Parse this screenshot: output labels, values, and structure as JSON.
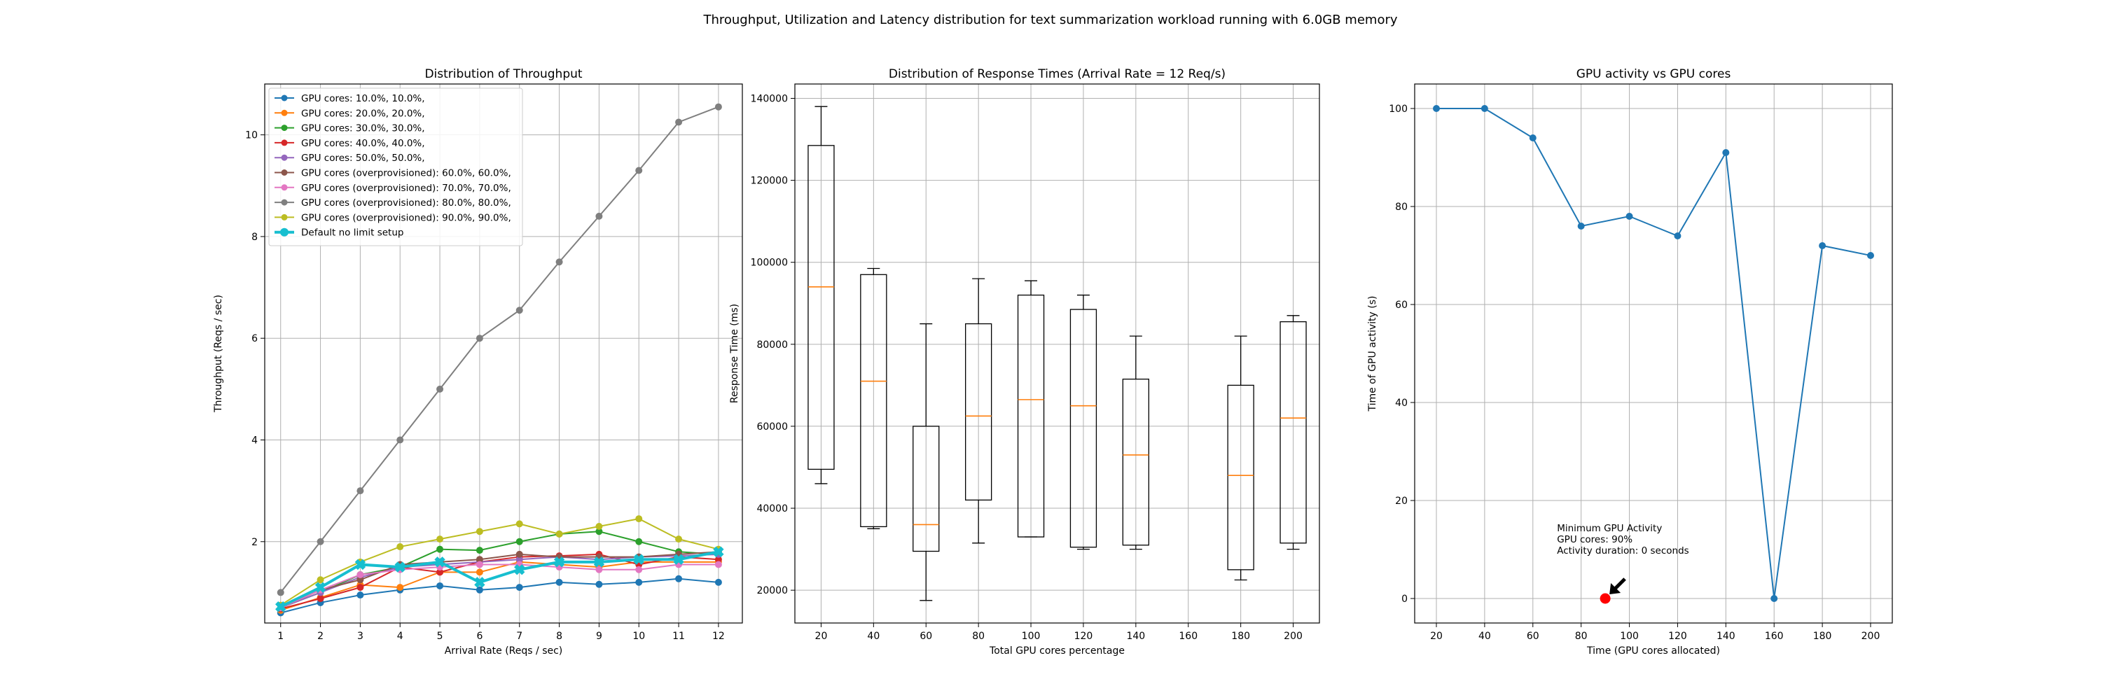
{
  "figure_title": "Throughput, Utilization and Latency distribution for text summarization workload running with 6.0GB memory",
  "chart_data": [
    {
      "type": "line",
      "title": "Distribution of Throughput",
      "xlabel": "Arrival Rate (Reqs / sec)",
      "ylabel": "Throughput (Reqs / sec)",
      "x": [
        1,
        2,
        3,
        4,
        5,
        6,
        7,
        8,
        9,
        10,
        11,
        12
      ],
      "xlim": [
        0.6,
        12.6
      ],
      "ylim": [
        0.4,
        11.0
      ],
      "yticks": [
        2,
        4,
        6,
        8,
        10
      ],
      "grid": true,
      "legend_position": "top-left",
      "series": [
        {
          "name": "GPU cores: 10.0%, 10.0%,",
          "color": "#1f77b4",
          "values": [
            0.6,
            0.8,
            0.95,
            1.05,
            1.13,
            1.05,
            1.1,
            1.2,
            1.16,
            1.2,
            1.27,
            1.2
          ]
        },
        {
          "name": "GPU cores: 20.0%, 20.0%,",
          "color": "#ff7f0e",
          "values": [
            0.65,
            0.9,
            1.15,
            1.1,
            1.4,
            1.4,
            1.6,
            1.55,
            1.5,
            1.6,
            1.6,
            1.6
          ]
        },
        {
          "name": "GPU cores: 30.0%, 30.0%,",
          "color": "#2ca02c",
          "values": [
            0.7,
            1.0,
            1.35,
            1.5,
            1.85,
            1.83,
            2.0,
            2.15,
            2.2,
            2.0,
            1.8,
            1.75
          ]
        },
        {
          "name": "GPU cores: 40.0%, 40.0%,",
          "color": "#d62728",
          "values": [
            0.68,
            0.88,
            1.1,
            1.5,
            1.4,
            1.6,
            1.7,
            1.72,
            1.75,
            1.55,
            1.7,
            1.65
          ]
        },
        {
          "name": "GPU cores: 50.0%, 50.0%,",
          "color": "#9467bd",
          "values": [
            0.7,
            1.0,
            1.3,
            1.5,
            1.55,
            1.6,
            1.65,
            1.7,
            1.65,
            1.7,
            1.72,
            1.75
          ]
        },
        {
          "name": "GPU cores (overprovisioned): 60.0%, 60.0%,",
          "color": "#8c564b",
          "values": [
            0.7,
            1.05,
            1.25,
            1.55,
            1.6,
            1.65,
            1.75,
            1.7,
            1.7,
            1.7,
            1.75,
            1.8
          ]
        },
        {
          "name": "GPU cores (overprovisioned): 70.0%, 70.0%,",
          "color": "#e377c2",
          "values": [
            0.7,
            1.05,
            1.35,
            1.45,
            1.5,
            1.55,
            1.55,
            1.5,
            1.45,
            1.45,
            1.55,
            1.55
          ]
        },
        {
          "name": "GPU cores (overprovisioned): 80.0%, 80.0%,",
          "color": "#7f7f7f",
          "values": [
            1.0,
            2.0,
            3.0,
            4.0,
            5.0,
            6.0,
            6.55,
            7.5,
            8.4,
            9.3,
            10.25,
            10.55
          ]
        },
        {
          "name": "GPU cores (overprovisioned): 90.0%, 90.0%,",
          "color": "#bcbd22",
          "values": [
            0.75,
            1.25,
            1.6,
            1.9,
            2.05,
            2.2,
            2.35,
            2.15,
            2.3,
            2.45,
            2.05,
            1.85
          ]
        },
        {
          "name": "Default no limit setup",
          "color": "#17becf",
          "thick": true,
          "values": [
            0.72,
            1.1,
            1.55,
            1.5,
            1.6,
            1.2,
            1.45,
            1.6,
            1.6,
            1.65,
            1.65,
            1.8
          ]
        }
      ]
    },
    {
      "type": "box",
      "title": "Distribution of Response Times (Arrival Rate = 12 Req/s)",
      "xlabel": "Total GPU cores percentage",
      "ylabel": "Response Time (ms)",
      "categories": [
        "20",
        "40",
        "60",
        "80",
        "100",
        "120",
        "140",
        "160",
        "180",
        "200"
      ],
      "ylim": [
        12000,
        143500
      ],
      "yticks": [
        20000,
        40000,
        60000,
        80000,
        100000,
        120000,
        140000
      ],
      "grid": true,
      "median_color": "#ff7f0e",
      "boxes": [
        {
          "whisker_low": 46000,
          "q1": 49500,
          "median": 94000,
          "q3": 128500,
          "whisker_high": 138000
        },
        {
          "whisker_low": 35000,
          "q1": 35500,
          "median": 71000,
          "q3": 97000,
          "whisker_high": 98500
        },
        {
          "whisker_low": 17500,
          "q1": 29500,
          "median": 36000,
          "q3": 60000,
          "whisker_high": 85000
        },
        {
          "whisker_low": 31500,
          "q1": 42000,
          "median": 62500,
          "q3": 85000,
          "whisker_high": 96000
        },
        {
          "whisker_low": 33000,
          "q1": 33000,
          "median": 66500,
          "q3": 92000,
          "whisker_high": 95500
        },
        {
          "whisker_low": 30000,
          "q1": 30500,
          "median": 65000,
          "q3": 88500,
          "whisker_high": 92000
        },
        {
          "whisker_low": 30000,
          "q1": 31000,
          "median": 53000,
          "q3": 71500,
          "whisker_high": 82000
        },
        null,
        {
          "whisker_low": 22500,
          "q1": 25000,
          "median": 48000,
          "q3": 70000,
          "whisker_high": 82000
        },
        {
          "whisker_low": 30000,
          "q1": 31500,
          "median": 62000,
          "q3": 85500,
          "whisker_high": 87000
        }
      ]
    },
    {
      "type": "line",
      "title": "GPU activity vs GPU cores",
      "xlabel": "Time (GPU cores allocated)",
      "ylabel": "Time of GPU activity (s)",
      "x": [
        20,
        40,
        60,
        80,
        100,
        120,
        140,
        160,
        180,
        200
      ],
      "xlim": [
        11,
        209
      ],
      "xticks": [
        20,
        40,
        60,
        80,
        100,
        120,
        140,
        160,
        180,
        200
      ],
      "ylim": [
        -5,
        105
      ],
      "yticks": [
        0,
        20,
        40,
        60,
        80,
        100
      ],
      "grid": true,
      "series": [
        {
          "color": "#1f77b4",
          "values": [
            100,
            100,
            94,
            76,
            78,
            74,
            91,
            0,
            72,
            70
          ]
        }
      ],
      "highlight_point": {
        "x": 90,
        "y": 0,
        "color": "#ff0000"
      },
      "annotation": {
        "lines": [
          "Minimum GPU Activity",
          "GPU cores: 90%",
          "Activity duration: 0 seconds"
        ],
        "text_x": 70,
        "text_y": 10,
        "arrow_to_x": 90,
        "arrow_to_y": 0
      }
    }
  ]
}
